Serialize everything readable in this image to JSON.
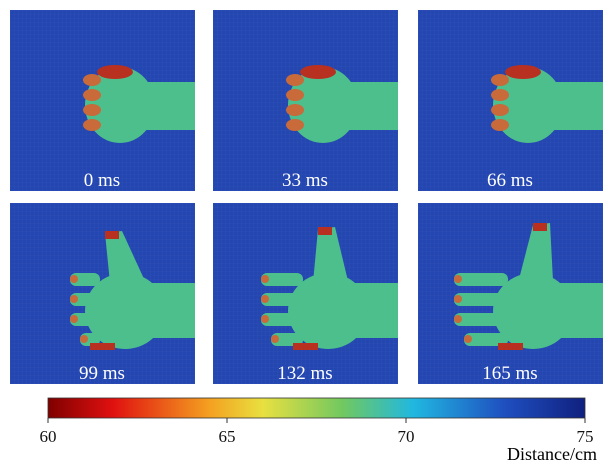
{
  "panels": [
    {
      "label": "0 ms"
    },
    {
      "label": "33 ms"
    },
    {
      "label": "66 ms"
    },
    {
      "label": "99 ms"
    },
    {
      "label": "132 ms"
    },
    {
      "label": "165 ms"
    }
  ],
  "colorbar": {
    "lim": [
      60,
      75
    ],
    "ticks": [
      60,
      65,
      70,
      75
    ],
    "label": "Distance/cm"
  }
}
